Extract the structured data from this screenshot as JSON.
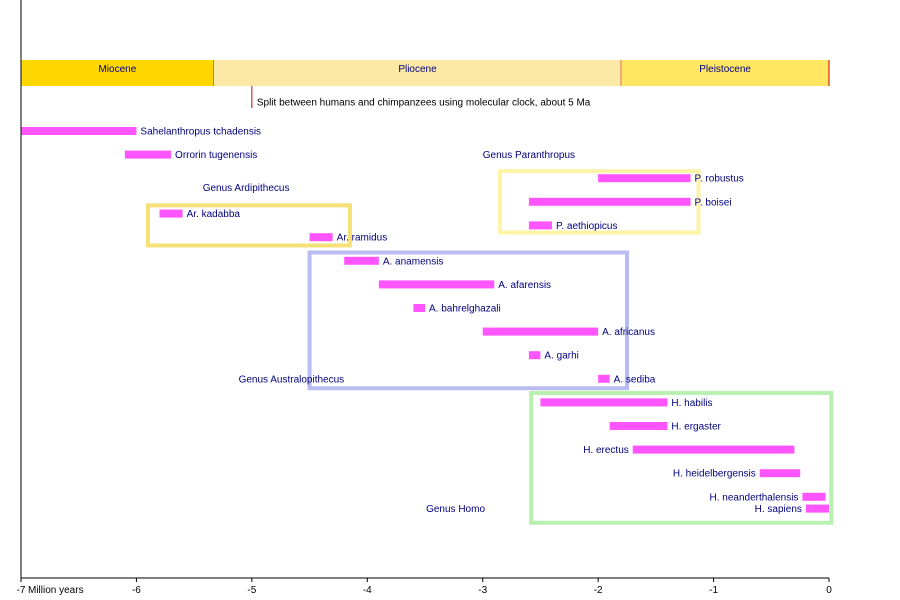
{
  "chart_data": {
    "type": "bar",
    "orientation": "horizontal-range",
    "x_unit": "Million years",
    "xlim": [
      -7,
      0
    ],
    "x_ticks": [
      {
        "value": -7,
        "label": "-7"
      },
      {
        "value": -6,
        "label": "-6"
      },
      {
        "value": -5,
        "label": "-5"
      },
      {
        "value": -4,
        "label": "-4"
      },
      {
        "value": -3,
        "label": "-3"
      },
      {
        "value": -2,
        "label": "-2"
      },
      {
        "value": -1,
        "label": "-1"
      },
      {
        "value": 0,
        "label": "0"
      }
    ],
    "epochs": [
      {
        "name": "Miocene",
        "start": -7,
        "end": -5.33,
        "color": "#ffd700"
      },
      {
        "name": "Pliocene",
        "start": -5.33,
        "end": -1.8,
        "color": "#fde9a6"
      },
      {
        "name": "Pleistocene",
        "start": -1.8,
        "end": 0,
        "color": "#ffe761"
      }
    ],
    "annotation": {
      "value": -5,
      "text": "Split between humans and chimpanzees using molecular clock, about 5 Ma"
    },
    "bar_color": "#ff55ff",
    "label_color": "#000080",
    "species": [
      {
        "name": "Sahelanthropus tchadensis",
        "start": -7.0,
        "end": -6.0,
        "row": 0
      },
      {
        "name": "Orrorin tugenensis",
        "start": -6.1,
        "end": -5.7,
        "row": 1
      },
      {
        "name": "P. robustus",
        "start": -2.0,
        "end": -1.2,
        "row": 2
      },
      {
        "name": "P. boisei",
        "start": -2.6,
        "end": -1.2,
        "row": 3
      },
      {
        "name": "Ar. kadabba",
        "start": -5.8,
        "end": -5.6,
        "row": 3.5
      },
      {
        "name": "P. aethiopicus",
        "start": -2.6,
        "end": -2.4,
        "row": 4
      },
      {
        "name": "Ar. ramidus",
        "start": -4.5,
        "end": -4.3,
        "row": 4.5
      },
      {
        "name": "A. anamensis",
        "start": -4.2,
        "end": -3.9,
        "row": 5.5
      },
      {
        "name": "A. afarensis",
        "start": -3.9,
        "end": -2.9,
        "row": 6.5
      },
      {
        "name": "A. bahrelghazali",
        "start": -3.6,
        "end": -3.5,
        "row": 7.5
      },
      {
        "name": "A. africanus",
        "start": -3.0,
        "end": -2.0,
        "row": 8.5
      },
      {
        "name": "A. garhi",
        "start": -2.6,
        "end": -2.5,
        "row": 9.5
      },
      {
        "name": "A. sediba",
        "start": -2.0,
        "end": -1.9,
        "row": 10.5
      },
      {
        "name": "H. habilis",
        "start": -2.5,
        "end": -1.4,
        "row": 11.5
      },
      {
        "name": "H. ergaster",
        "start": -1.9,
        "end": -1.4,
        "row": 12.5
      },
      {
        "name": "H. erectus",
        "start": -1.7,
        "end": -0.3,
        "row": 13.5,
        "label_side": "left"
      },
      {
        "name": "H. heidelbergensis",
        "start": -0.6,
        "end": -0.25,
        "row": 14.5,
        "label_side": "left"
      },
      {
        "name": "H. neanderthalensis",
        "start": -0.23,
        "end": -0.03,
        "row": 15.5,
        "label_side": "left"
      },
      {
        "name": "H. sapiens",
        "start": -0.2,
        "end": 0.0,
        "row": 16.0,
        "label_side": "left"
      }
    ],
    "groups": [
      {
        "name": "Genus Ardipithecus",
        "color": "#f5e178",
        "x0": -5.9,
        "x1": -4.15,
        "row0": 3.15,
        "row1": 4.85,
        "label_x": -5.05,
        "label_row": 2.4,
        "label_anchor": "middle"
      },
      {
        "name": "Genus Paranthropus",
        "color": "#fdf4a8",
        "x0": -2.85,
        "x1": -1.13,
        "row0": 1.7,
        "row1": 4.3,
        "label_x": -2.6,
        "label_row": 1.0,
        "label_anchor": "middle"
      },
      {
        "name": "Genus Australopithecus",
        "color": "#b8bcf0",
        "x0": -4.5,
        "x1": -1.75,
        "row0": 5.15,
        "row1": 10.9,
        "label_x": -4.2,
        "label_row": 10.5,
        "label_anchor": "end"
      },
      {
        "name": "Genus Homo",
        "color": "#b8f0b0",
        "x0": -2.58,
        "x1": 0.02,
        "row0": 11.1,
        "row1": 16.6,
        "label_x": -2.98,
        "label_row": 16.0,
        "label_anchor": "end"
      }
    ]
  }
}
